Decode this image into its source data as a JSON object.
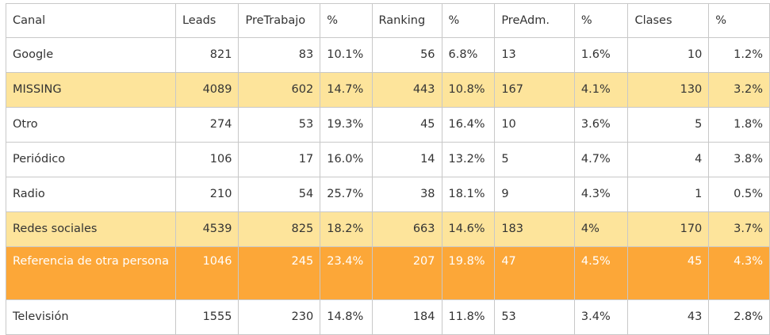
{
  "table": {
    "headers": [
      "Canal",
      "Leads",
      "PreTrabajo",
      "%",
      "Ranking",
      "%",
      "PreAdm.",
      "%",
      "Clases",
      "%"
    ],
    "rows": [
      {
        "highlight": "none",
        "cells": [
          "Google",
          "821",
          "83",
          "10.1%",
          "56",
          "6.8%",
          "13",
          "1.6%",
          "10",
          "1.2%"
        ]
      },
      {
        "highlight": "yellow",
        "cells": [
          "MISSING",
          "4089",
          "602",
          "14.7%",
          "443",
          "10.8%",
          "167",
          "4.1%",
          "130",
          "3.2%"
        ]
      },
      {
        "highlight": "none",
        "cells": [
          "Otro",
          "274",
          "53",
          "19.3%",
          "45",
          "16.4%",
          "10",
          "3.6%",
          "5",
          "1.8%"
        ]
      },
      {
        "highlight": "none",
        "cells": [
          "Periódico",
          "106",
          "17",
          "16.0%",
          "14",
          "13.2%",
          "5",
          "4.7%",
          "4",
          "3.8%"
        ]
      },
      {
        "highlight": "none",
        "cells": [
          "Radio",
          "210",
          "54",
          "25.7%",
          "38",
          "18.1%",
          "9",
          "4.3%",
          "1",
          "0.5%"
        ]
      },
      {
        "highlight": "yellow",
        "cells": [
          "Redes sociales",
          "4539",
          "825",
          "18.2%",
          "663",
          "14.6%",
          "183",
          "4%",
          "170",
          "3.7%"
        ]
      },
      {
        "highlight": "orange",
        "cells": [
          "Referencia de otra persona",
          "1046",
          "245",
          "23.4%",
          "207",
          "19.8%",
          "47",
          "4.5%",
          "45",
          "4.3%"
        ]
      },
      {
        "highlight": "none",
        "cells": [
          "Televisión",
          "1555",
          "230",
          "14.8%",
          "184",
          "11.8%",
          "53",
          "3.4%",
          "43",
          "2.8%"
        ]
      }
    ]
  },
  "colors": {
    "yellow_row": "#fde49b",
    "orange_row": "#fca738",
    "grid_line": "#c8c8c8",
    "text": "#333333"
  }
}
